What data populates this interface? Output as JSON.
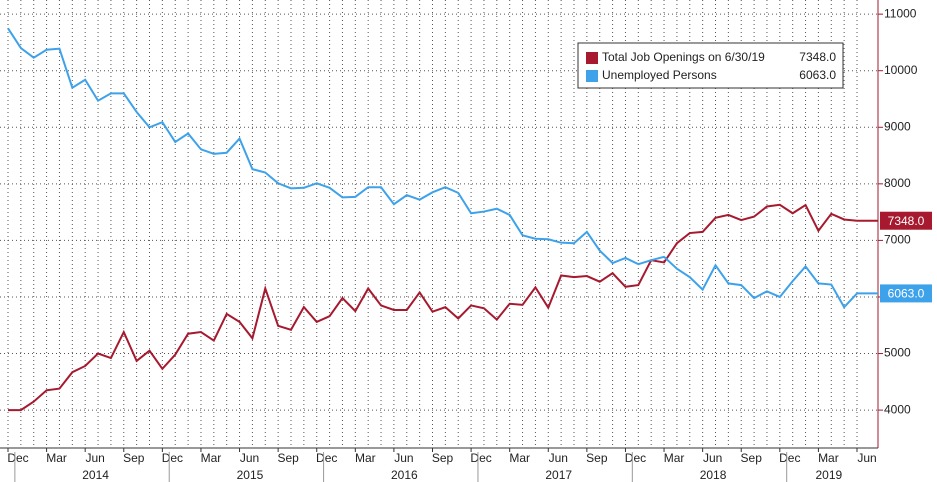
{
  "chart_data": {
    "type": "line",
    "categories": [
      "Dec",
      null,
      null,
      "Mar",
      null,
      null,
      "Jun",
      null,
      null,
      "Sep",
      null,
      null,
      "Dec",
      null,
      null,
      "Mar",
      null,
      null,
      "Jun",
      null,
      null,
      "Sep",
      null,
      null,
      "Dec",
      null,
      null,
      "Mar",
      null,
      null,
      "Jun",
      null,
      null,
      "Sep",
      null,
      null,
      "Dec",
      null,
      null,
      "Mar",
      null,
      null,
      "Jun",
      null,
      null,
      "Sep",
      null,
      null,
      "Dec",
      null,
      null,
      "Mar",
      null,
      null,
      "Jun",
      null,
      null,
      "Sep",
      null,
      null,
      "Dec",
      null,
      null,
      "Mar",
      null,
      null,
      "Jun"
    ],
    "years": [
      "2014",
      "2015",
      "2016",
      "2017",
      "2018",
      "2019"
    ],
    "series": [
      {
        "name": "Total Job Openings on 6/30/19",
        "color": "#a6192e",
        "legend_value": "7348.0",
        "values": [
          4000,
          4000,
          4150,
          4350,
          4380,
          4670,
          4780,
          5000,
          4920,
          5380,
          4870,
          5050,
          4730,
          4980,
          5350,
          5380,
          5230,
          5700,
          5560,
          5270,
          6150,
          5490,
          5420,
          5820,
          5560,
          5660,
          5980,
          5750,
          6150,
          5850,
          5770,
          5770,
          6080,
          5740,
          5820,
          5620,
          5850,
          5800,
          5600,
          5880,
          5860,
          6170,
          5810,
          6380,
          6350,
          6370,
          6270,
          6420,
          6180,
          6210,
          6650,
          6610,
          6950,
          7130,
          7150,
          7400,
          7450,
          7360,
          7420,
          7600,
          7630,
          7480,
          7625,
          7170,
          7470,
          7370,
          7348
        ]
      },
      {
        "name": "Unemployed Persons",
        "color": "#3ea2ea",
        "legend_value": "6063.0",
        "values": [
          10750,
          10400,
          10230,
          10370,
          10390,
          9700,
          9840,
          9470,
          9600,
          9600,
          9270,
          9000,
          9090,
          8740,
          8890,
          8610,
          8530,
          8550,
          8800,
          8260,
          8200,
          8010,
          7920,
          7930,
          8010,
          7930,
          7760,
          7770,
          7940,
          7940,
          7640,
          7800,
          7720,
          7850,
          7940,
          7840,
          7480,
          7510,
          7560,
          7450,
          7090,
          7030,
          7020,
          6960,
          6950,
          7150,
          6820,
          6600,
          6690,
          6580,
          6650,
          6710,
          6500,
          6350,
          6130,
          6560,
          6240,
          6210,
          5980,
          6100,
          6000,
          6280,
          6540,
          6240,
          6220,
          5820,
          6063
        ]
      }
    ],
    "ylim": [
      3330,
      11250
    ],
    "yticks": [
      4000,
      5000,
      6000,
      7000,
      8000,
      9000,
      10000,
      11000
    ],
    "grid": true
  }
}
